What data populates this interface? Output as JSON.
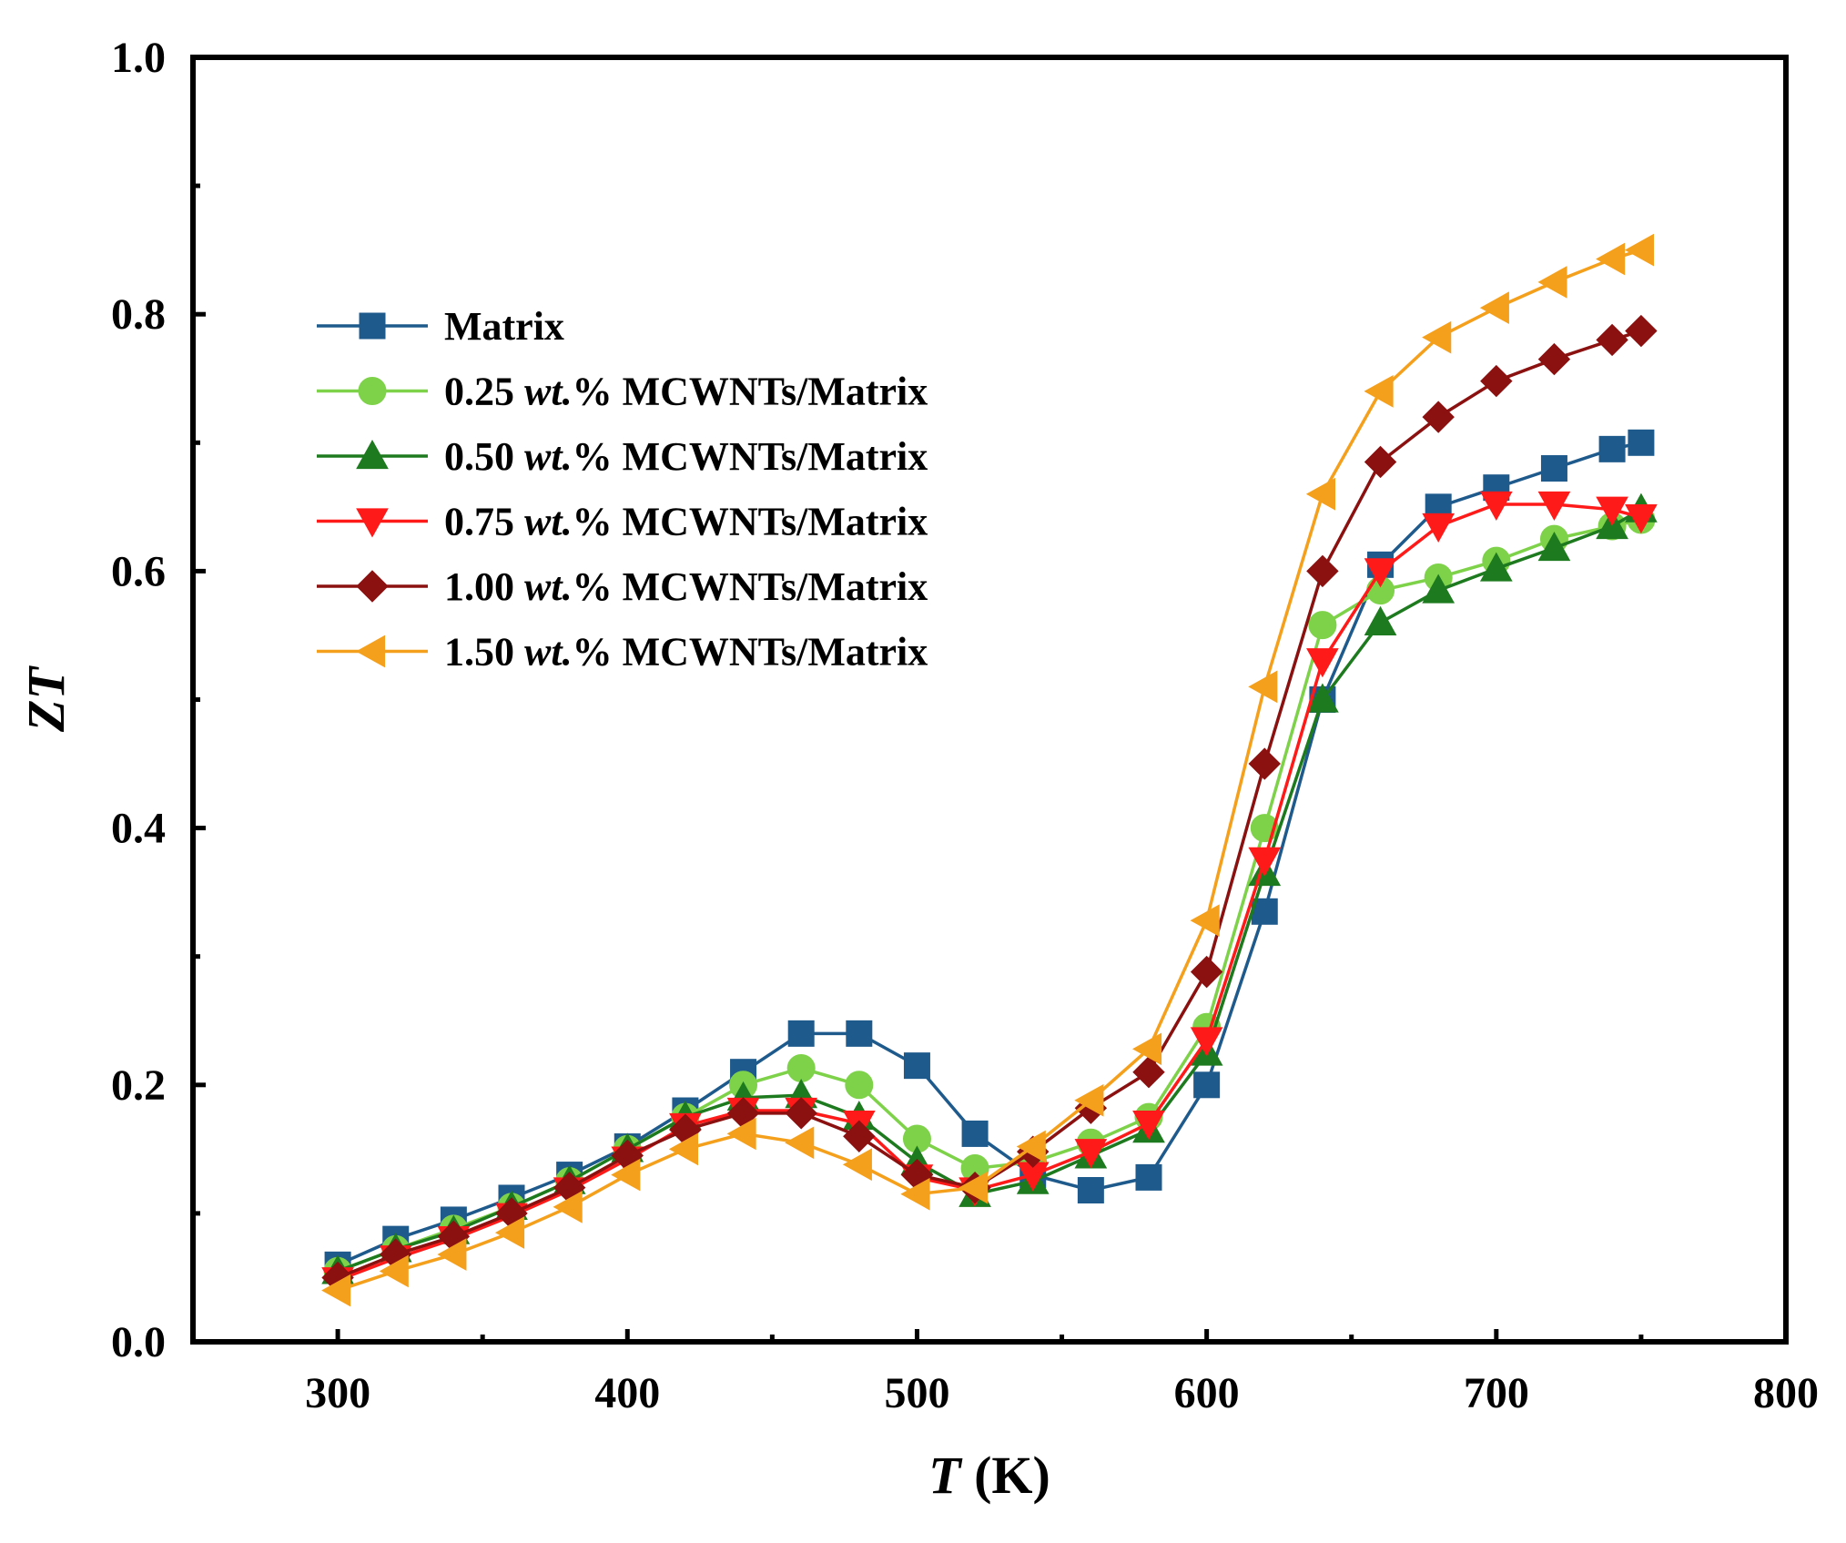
{
  "chart_data": {
    "type": "line",
    "title": "",
    "xlabel_main": "T",
    "xlabel_unit": " (K)",
    "ylabel": "ZT",
    "xlim": [
      250,
      800
    ],
    "ylim": [
      0.0,
      1.0
    ],
    "xticks": [
      300,
      400,
      500,
      600,
      700,
      800
    ],
    "xtick_labels": [
      "300",
      "400",
      "500",
      "600",
      "700",
      "800"
    ],
    "yticks": [
      0.0,
      0.2,
      0.4,
      0.6,
      0.8,
      1.0
    ],
    "ytick_labels": [
      "0.0",
      "0.2",
      "0.4",
      "0.6",
      "0.8",
      "1.0"
    ],
    "legend_position": "upper-left",
    "grid": false,
    "x": [
      300,
      320,
      340,
      360,
      380,
      400,
      420,
      440,
      460,
      480,
      500,
      520,
      540,
      560,
      580,
      600,
      620,
      640,
      660,
      680,
      700,
      720,
      740,
      750
    ],
    "series": [
      {
        "name": "Matrix",
        "legend_parts": [
          "Matrix"
        ],
        "color": "#1f5a8c",
        "marker": "square",
        "values": [
          0.06,
          0.08,
          0.095,
          0.112,
          0.13,
          0.152,
          0.18,
          0.21,
          0.24,
          0.24,
          0.215,
          0.162,
          0.13,
          0.118,
          0.128,
          0.2,
          0.335,
          0.5,
          0.605,
          0.65,
          0.665,
          0.68,
          0.695,
          0.7
        ]
      },
      {
        "name": "0.25 wt.% MCWNTs/Matrix",
        "legend_parts": [
          "0.25 ",
          "wt.",
          "% MCWNTs/Matrix"
        ],
        "color": "#7ed24a",
        "marker": "circle",
        "values": [
          0.055,
          0.072,
          0.088,
          0.105,
          0.125,
          0.15,
          0.175,
          0.2,
          0.213,
          0.2,
          0.158,
          0.135,
          0.14,
          0.155,
          0.175,
          0.245,
          0.4,
          0.558,
          0.585,
          0.595,
          0.608,
          0.625,
          0.635,
          0.64
        ]
      },
      {
        "name": "0.50 wt.% MCWNTs/Matrix",
        "legend_parts": [
          "0.50 ",
          "wt.",
          "% MCWNTs/Matrix"
        ],
        "color": "#1e7a1e",
        "marker": "triangle-up",
        "values": [
          0.055,
          0.072,
          0.086,
          0.105,
          0.125,
          0.15,
          0.175,
          0.19,
          0.192,
          0.175,
          0.14,
          0.115,
          0.125,
          0.145,
          0.165,
          0.225,
          0.365,
          0.5,
          0.56,
          0.585,
          0.602,
          0.618,
          0.635,
          0.648
        ]
      },
      {
        "name": "0.75 wt.% MCWNTs/Matrix",
        "legend_parts": [
          "0.75 ",
          "wt.",
          "% MCWNTs/Matrix"
        ],
        "color": "#ff1a1a",
        "marker": "triangle-down",
        "values": [
          0.048,
          0.065,
          0.08,
          0.098,
          0.118,
          0.142,
          0.168,
          0.18,
          0.18,
          0.17,
          0.128,
          0.118,
          0.13,
          0.148,
          0.17,
          0.235,
          0.375,
          0.53,
          0.6,
          0.635,
          0.652,
          0.652,
          0.648,
          0.642
        ]
      },
      {
        "name": "1.00 wt.% MCWNTs/Matrix",
        "legend_parts": [
          "1.00 ",
          "wt.",
          "% MCWNTs/Matrix"
        ],
        "color": "#8b1010",
        "marker": "diamond",
        "values": [
          0.05,
          0.068,
          0.082,
          0.1,
          0.12,
          0.145,
          0.165,
          0.178,
          0.178,
          0.16,
          0.13,
          0.12,
          0.148,
          0.182,
          0.21,
          0.288,
          0.45,
          0.6,
          0.685,
          0.72,
          0.748,
          0.765,
          0.78,
          0.787
        ]
      },
      {
        "name": "1.50 wt.% MCWNTs/Matrix",
        "legend_parts": [
          "1.50 ",
          "wt.",
          "% MCWNTs/Matrix"
        ],
        "color": "#f5a01c",
        "marker": "triangle-left",
        "values": [
          0.04,
          0.055,
          0.068,
          0.085,
          0.105,
          0.13,
          0.15,
          0.162,
          0.155,
          0.138,
          0.115,
          0.12,
          0.152,
          0.188,
          0.228,
          0.328,
          0.51,
          0.66,
          0.74,
          0.782,
          0.805,
          0.825,
          0.843,
          0.85
        ]
      }
    ]
  }
}
